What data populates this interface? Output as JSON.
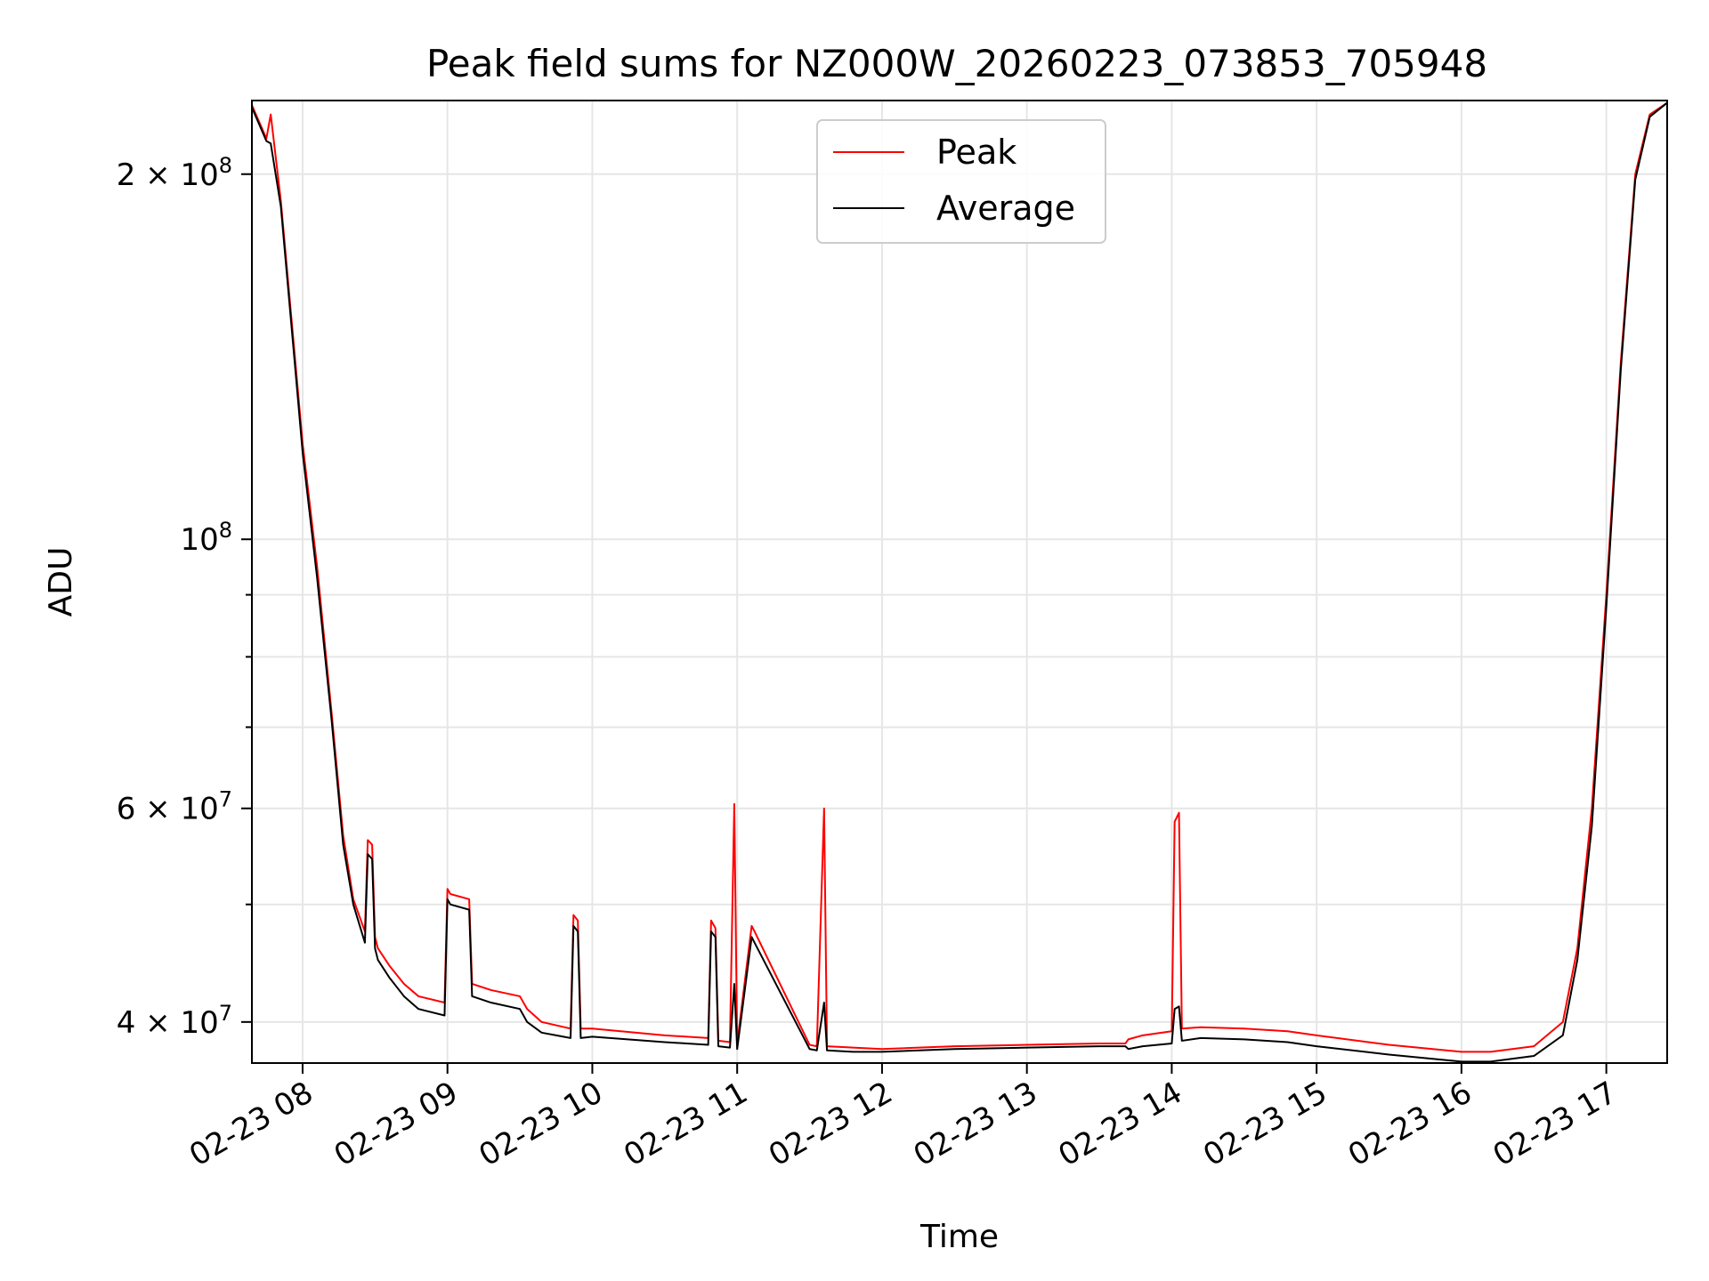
{
  "chart_data": {
    "type": "line",
    "title": "Peak field sums for NZ000W_20260223_073853_705948",
    "xlabel": "Time",
    "ylabel": "ADU",
    "yscale": "log",
    "ylim": [
      37000000,
      230000000
    ],
    "xlim_hours": [
      7.65,
      17.42
    ],
    "grid": true,
    "legend_position": "upper center",
    "colors": {
      "peak": "#ff0000",
      "average": "#000000"
    },
    "x_ticks": [
      {
        "hour": 8,
        "label": "02-23 08"
      },
      {
        "hour": 9,
        "label": "02-23 09"
      },
      {
        "hour": 10,
        "label": "02-23 10"
      },
      {
        "hour": 11,
        "label": "02-23 11"
      },
      {
        "hour": 12,
        "label": "02-23 12"
      },
      {
        "hour": 13,
        "label": "02-23 13"
      },
      {
        "hour": 14,
        "label": "02-23 14"
      },
      {
        "hour": 15,
        "label": "02-23 15"
      },
      {
        "hour": 16,
        "label": "02-23 16"
      },
      {
        "hour": 17,
        "label": "02-23 17"
      }
    ],
    "y_ticks_major": [
      {
        "value": 40000000,
        "coef": "4",
        "exp": "7",
        "form": "coef"
      },
      {
        "value": 60000000,
        "coef": "6",
        "exp": "7",
        "form": "coef"
      },
      {
        "value": 100000000,
        "coef": "",
        "exp": "8",
        "form": "pow"
      },
      {
        "value": 200000000,
        "coef": "2",
        "exp": "8",
        "form": "coef"
      }
    ],
    "y_ticks_minor": [
      50000000,
      70000000,
      80000000,
      90000000
    ],
    "series": [
      {
        "name": "Peak",
        "key": "peak",
        "x": [
          7.65,
          7.75,
          7.78,
          7.85,
          7.95,
          8.0,
          8.1,
          8.2,
          8.28,
          8.35,
          8.43,
          8.45,
          8.48,
          8.5,
          8.52,
          8.6,
          8.7,
          8.8,
          8.98,
          9.0,
          9.02,
          9.15,
          9.17,
          9.3,
          9.5,
          9.55,
          9.65,
          9.85,
          9.87,
          9.9,
          9.92,
          10.0,
          10.5,
          10.8,
          10.82,
          10.85,
          10.87,
          10.95,
          10.98,
          11.0,
          11.1,
          11.12,
          11.5,
          11.55,
          11.6,
          11.62,
          11.8,
          12.0,
          12.5,
          13.0,
          13.5,
          13.68,
          13.7,
          13.8,
          14.0,
          14.02,
          14.05,
          14.07,
          14.2,
          14.5,
          14.8,
          15.0,
          15.5,
          16.0,
          16.2,
          16.5,
          16.7,
          16.8,
          16.9,
          17.0,
          17.1,
          17.2,
          17.3,
          17.42
        ],
        "y": [
          228000000,
          214000000,
          224000000,
          190000000,
          140000000,
          120000000,
          95000000,
          72000000,
          57000000,
          50500000,
          47500000,
          56500000,
          56000000,
          47000000,
          46000000,
          44500000,
          43000000,
          42000000,
          41500000,
          51500000,
          51000000,
          50500000,
          43000000,
          42500000,
          42000000,
          41000000,
          40000000,
          39500000,
          49000000,
          48500000,
          39500000,
          39500000,
          39000000,
          38800000,
          48500000,
          47800000,
          38600000,
          38500000,
          60500000,
          38400000,
          48000000,
          47500000,
          38300000,
          38200000,
          60000000,
          38200000,
          38100000,
          38000000,
          38200000,
          38300000,
          38400000,
          38400000,
          38700000,
          39000000,
          39300000,
          58500000,
          59500000,
          39500000,
          39600000,
          39500000,
          39300000,
          39000000,
          38300000,
          37800000,
          37800000,
          38200000,
          40000000,
          46000000,
          60000000,
          90000000,
          140000000,
          200000000,
          224000000,
          229000000
        ]
      },
      {
        "name": "Average",
        "key": "average",
        "x": [
          7.65,
          7.75,
          7.78,
          7.85,
          7.95,
          8.0,
          8.1,
          8.2,
          8.28,
          8.35,
          8.43,
          8.45,
          8.48,
          8.5,
          8.52,
          8.6,
          8.7,
          8.8,
          8.98,
          9.0,
          9.02,
          9.15,
          9.17,
          9.3,
          9.5,
          9.55,
          9.65,
          9.85,
          9.87,
          9.9,
          9.92,
          10.0,
          10.5,
          10.8,
          10.82,
          10.85,
          10.87,
          10.95,
          10.98,
          11.0,
          11.1,
          11.12,
          11.5,
          11.55,
          11.6,
          11.62,
          11.8,
          12.0,
          12.5,
          13.0,
          13.5,
          13.68,
          13.7,
          13.8,
          14.0,
          14.02,
          14.05,
          14.07,
          14.2,
          14.5,
          14.8,
          15.0,
          15.5,
          16.0,
          16.2,
          16.5,
          16.7,
          16.8,
          16.9,
          17.0,
          17.1,
          17.2,
          17.3,
          17.42
        ],
        "y": [
          227000000,
          213000000,
          212000000,
          188000000,
          138000000,
          118000000,
          93000000,
          71000000,
          56000000,
          50000000,
          46500000,
          55000000,
          54500000,
          46000000,
          45000000,
          43500000,
          42000000,
          41000000,
          40500000,
          50500000,
          50000000,
          49500000,
          42000000,
          41500000,
          41000000,
          40000000,
          39200000,
          38800000,
          48000000,
          47500000,
          38800000,
          38900000,
          38500000,
          38300000,
          47500000,
          47000000,
          38200000,
          38100000,
          43000000,
          38000000,
          47000000,
          46500000,
          38000000,
          37900000,
          41500000,
          37900000,
          37800000,
          37800000,
          38000000,
          38100000,
          38200000,
          38200000,
          38000000,
          38200000,
          38400000,
          41000000,
          41200000,
          38600000,
          38800000,
          38700000,
          38500000,
          38200000,
          37600000,
          37100000,
          37100000,
          37500000,
          39000000,
          45000000,
          58000000,
          88000000,
          138000000,
          198000000,
          223000000,
          229000000
        ]
      }
    ]
  }
}
